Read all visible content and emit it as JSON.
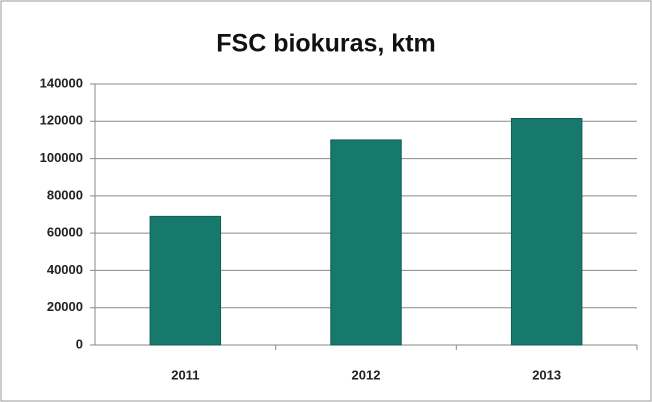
{
  "chart_data": {
    "type": "bar",
    "title": "FSC biokuras, ktm",
    "categories": [
      "2011",
      "2012",
      "2013"
    ],
    "values": [
      69000,
      110000,
      121500
    ],
    "color": "#17786c",
    "ylim": [
      0,
      140000
    ],
    "yticks": [
      0,
      20000,
      40000,
      60000,
      80000,
      100000,
      120000,
      140000
    ],
    "grid": true
  }
}
